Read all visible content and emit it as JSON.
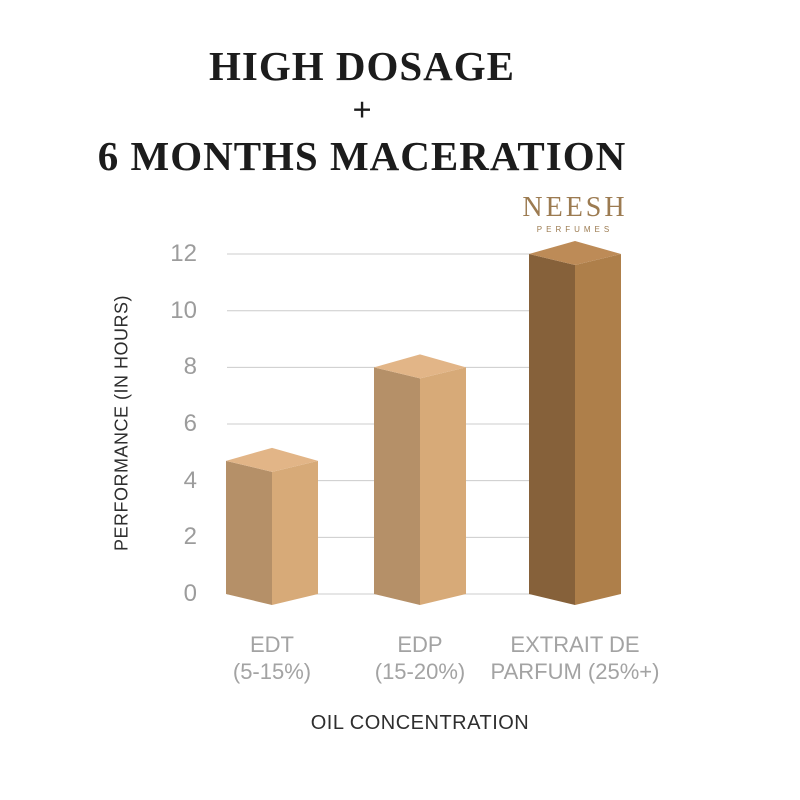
{
  "title": {
    "line1": "HIGH DOSAGE",
    "separator": "+",
    "line2": "6 MONTHS MACERATION",
    "color": "#1c1c1c"
  },
  "brand": {
    "name": "NEESH",
    "tagline": "PERFUMES",
    "color": "#9c7b51"
  },
  "chart_data": {
    "type": "bar",
    "style": "3d-extruded",
    "categories": [
      {
        "label_line1": "EDT",
        "label_line2": "(5-15%)"
      },
      {
        "label_line1": "EDP",
        "label_line2": "(15-20%)"
      },
      {
        "label_line1": "EXTRAIT DE",
        "label_line2": "PARFUM (25%+)"
      }
    ],
    "values": [
      4.7,
      8,
      12
    ],
    "xlabel": "OIL CONCENTRATION",
    "ylabel": "PERFORMANCE (IN HOURS)",
    "yticks": [
      0,
      2,
      4,
      6,
      8,
      10,
      12
    ],
    "ylim": [
      0,
      12
    ],
    "grid": true,
    "legend": "none",
    "gridline_color": "#cccccc",
    "tick_color": "#9c9c9c",
    "category_label_color": "#a3a3a3",
    "axis_title_color": "#2e2e2e",
    "bar_colors": [
      {
        "left": "#b59068",
        "right": "#d7aa78",
        "top": "#e2b587"
      },
      {
        "left": "#b59068",
        "right": "#d7aa78",
        "top": "#e2b587"
      },
      {
        "left": "#86613a",
        "right": "#ae7f4a",
        "top": "#bd8b57"
      }
    ]
  }
}
